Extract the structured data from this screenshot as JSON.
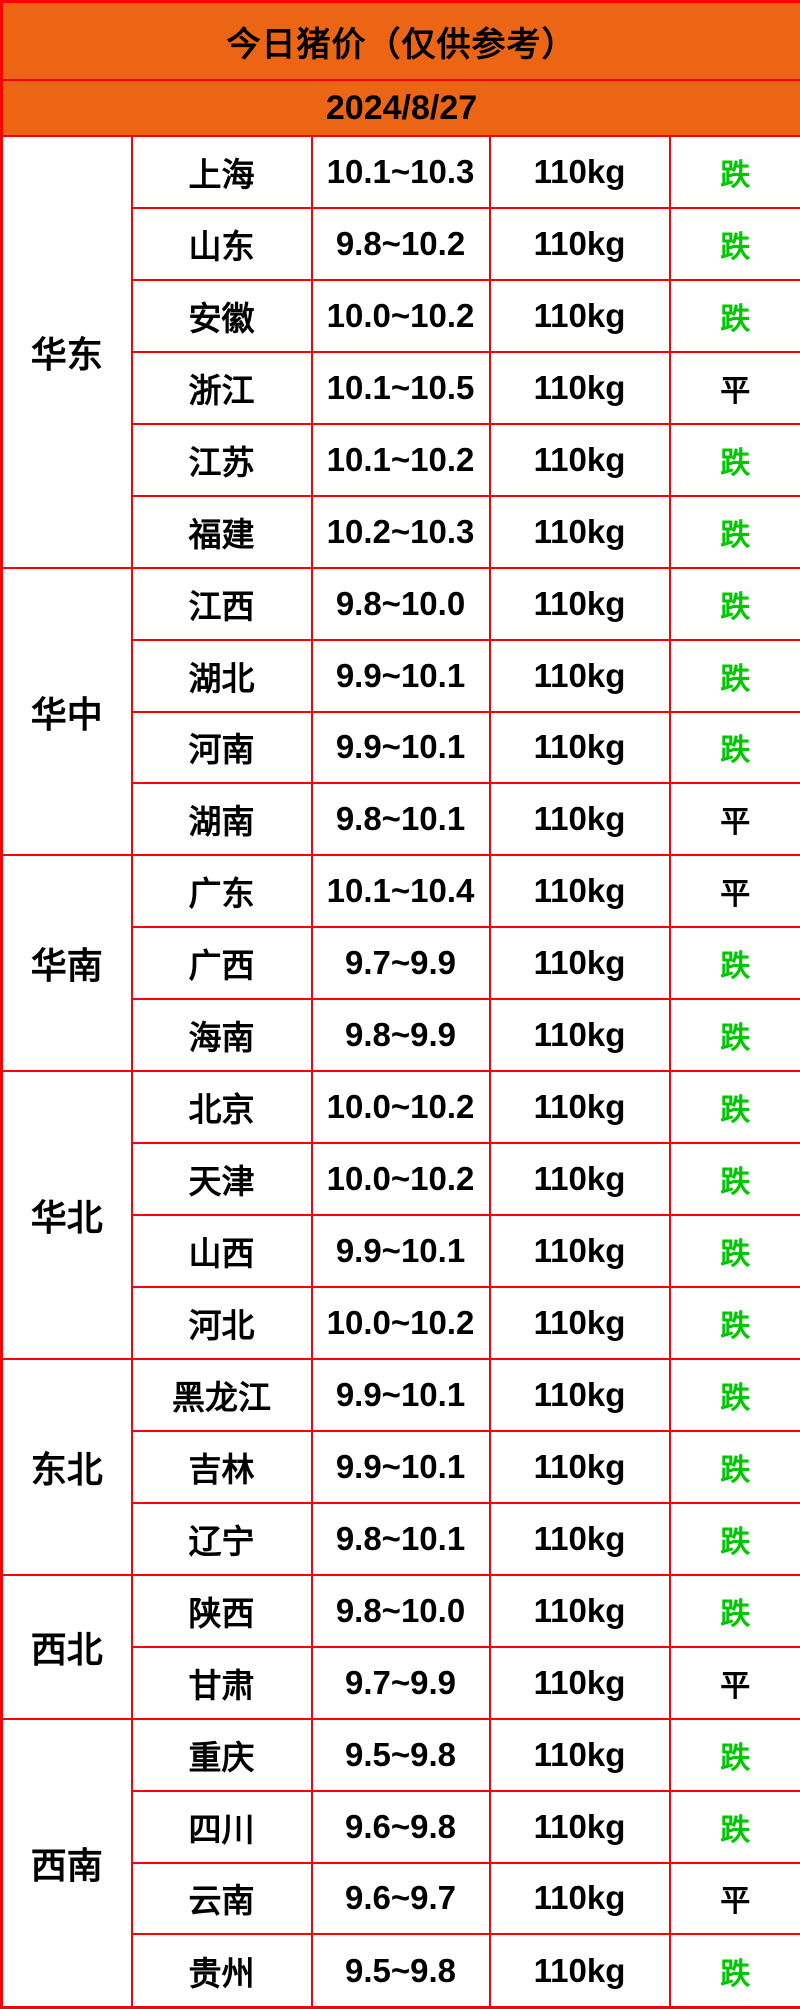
{
  "header": {
    "title": "今日猪价（仅供参考）",
    "date": "2024/8/27"
  },
  "colors": {
    "banner_background": "#eb6514",
    "grid_border": "#fe0000",
    "trend_down": "#00c800",
    "trend_flat": "#000000"
  },
  "trend_colors": {
    "跌": "#00c800",
    "平": "#000000"
  },
  "regions": [
    {
      "name": "华东",
      "rows": [
        [
          "上海",
          "10.1~10.3",
          "110kg",
          "跌"
        ],
        [
          "山东",
          "9.8~10.2",
          "110kg",
          "跌"
        ],
        [
          "安徽",
          "10.0~10.2",
          "110kg",
          "跌"
        ],
        [
          "浙江",
          "10.1~10.5",
          "110kg",
          "平"
        ],
        [
          "江苏",
          "10.1~10.2",
          "110kg",
          "跌"
        ],
        [
          "福建",
          "10.2~10.3",
          "110kg",
          "跌"
        ]
      ]
    },
    {
      "name": "华中",
      "rows": [
        [
          "江西",
          "9.8~10.0",
          "110kg",
          "跌"
        ],
        [
          "湖北",
          "9.9~10.1",
          "110kg",
          "跌"
        ],
        [
          "河南",
          "9.9~10.1",
          "110kg",
          "跌"
        ],
        [
          "湖南",
          "9.8~10.1",
          "110kg",
          "平"
        ]
      ]
    },
    {
      "name": "华南",
      "rows": [
        [
          "广东",
          "10.1~10.4",
          "110kg",
          "平"
        ],
        [
          "广西",
          "9.7~9.9",
          "110kg",
          "跌"
        ],
        [
          "海南",
          "9.8~9.9",
          "110kg",
          "跌"
        ]
      ]
    },
    {
      "name": "华北",
      "rows": [
        [
          "北京",
          "10.0~10.2",
          "110kg",
          "跌"
        ],
        [
          "天津",
          "10.0~10.2",
          "110kg",
          "跌"
        ],
        [
          "山西",
          "9.9~10.1",
          "110kg",
          "跌"
        ],
        [
          "河北",
          "10.0~10.2",
          "110kg",
          "跌"
        ]
      ]
    },
    {
      "name": "东北",
      "rows": [
        [
          "黑龙江",
          "9.9~10.1",
          "110kg",
          "跌"
        ],
        [
          "吉林",
          "9.9~10.1",
          "110kg",
          "跌"
        ],
        [
          "辽宁",
          "9.8~10.1",
          "110kg",
          "跌"
        ]
      ]
    },
    {
      "name": "西北",
      "rows": [
        [
          "陕西",
          "9.8~10.0",
          "110kg",
          "跌"
        ],
        [
          "甘肃",
          "9.7~9.9",
          "110kg",
          "平"
        ]
      ]
    },
    {
      "name": "西南",
      "rows": [
        [
          "重庆",
          "9.5~9.8",
          "110kg",
          "跌"
        ],
        [
          "四川",
          "9.6~9.8",
          "110kg",
          "跌"
        ],
        [
          "云南",
          "9.6~9.7",
          "110kg",
          "平"
        ],
        [
          "贵州",
          "9.5~9.8",
          "110kg",
          "跌"
        ]
      ]
    }
  ]
}
